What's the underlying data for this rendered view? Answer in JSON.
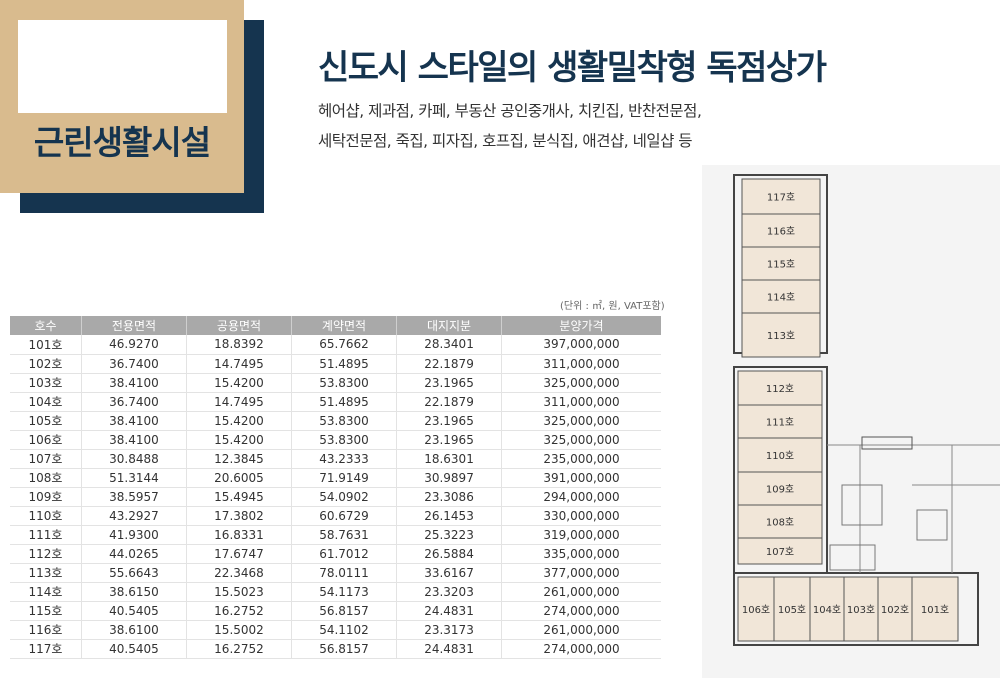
{
  "badge": {
    "label": "근린생활시설"
  },
  "headline": "신도시 스타일의 생활밀착형 독점상가",
  "subline1": "헤어샵, 제과점, 카페, 부동산 공인중개사, 치킨집, 반찬전문점,",
  "subline2": "세탁전문점, 죽집, 피자집, 호프집, 분식집, 애견샵, 네일샵 등",
  "unit_note": "(단위 : ㎡, 원, VAT포함)",
  "table": {
    "headers": [
      "호수",
      "전용면적",
      "공용면적",
      "계약면적",
      "대지지분",
      "분양가격"
    ],
    "rows": [
      [
        "101호",
        "46.9270",
        "18.8392",
        "65.7662",
        "28.3401",
        "397,000,000"
      ],
      [
        "102호",
        "36.7400",
        "14.7495",
        "51.4895",
        "22.1879",
        "311,000,000"
      ],
      [
        "103호",
        "38.4100",
        "15.4200",
        "53.8300",
        "23.1965",
        "325,000,000"
      ],
      [
        "104호",
        "36.7400",
        "14.7495",
        "51.4895",
        "22.1879",
        "311,000,000"
      ],
      [
        "105호",
        "38.4100",
        "15.4200",
        "53.8300",
        "23.1965",
        "325,000,000"
      ],
      [
        "106호",
        "38.4100",
        "15.4200",
        "53.8300",
        "23.1965",
        "325,000,000"
      ],
      [
        "107호",
        "30.8488",
        "12.3845",
        "43.2333",
        "18.6301",
        "235,000,000"
      ],
      [
        "108호",
        "51.3144",
        "20.6005",
        "71.9149",
        "30.9897",
        "391,000,000"
      ],
      [
        "109호",
        "38.5957",
        "15.4945",
        "54.0902",
        "23.3086",
        "294,000,000"
      ],
      [
        "110호",
        "43.2927",
        "17.3802",
        "60.6729",
        "26.1453",
        "330,000,000"
      ],
      [
        "111호",
        "41.9300",
        "16.8331",
        "58.7631",
        "25.3223",
        "319,000,000"
      ],
      [
        "112호",
        "44.0265",
        "17.6747",
        "61.7012",
        "26.5884",
        "335,000,000"
      ],
      [
        "113호",
        "55.6643",
        "22.3468",
        "78.0111",
        "33.6167",
        "377,000,000"
      ],
      [
        "114호",
        "38.6150",
        "15.5023",
        "54.1173",
        "23.3203",
        "261,000,000"
      ],
      [
        "115호",
        "40.5405",
        "16.2752",
        "56.8157",
        "24.4831",
        "274,000,000"
      ],
      [
        "116호",
        "38.6100",
        "15.5002",
        "54.1102",
        "23.3173",
        "261,000,000"
      ],
      [
        "117호",
        "40.5405",
        "16.2752",
        "56.8157",
        "24.4831",
        "274,000,000"
      ]
    ]
  },
  "floorplan": {
    "upper_units": [
      "117호",
      "116호",
      "115호",
      "114호",
      "113호"
    ],
    "middle_units": [
      "112호",
      "111호",
      "110호",
      "109호",
      "108호",
      "107호"
    ],
    "bottom_units": [
      "106호",
      "105호",
      "104호",
      "103호",
      "102호",
      "101호"
    ]
  },
  "colors": {
    "navy": "#15344f",
    "tan": "#d9bb8e",
    "unit_fill": "#f1e6d8",
    "header_gray": "#a9a9a9"
  }
}
